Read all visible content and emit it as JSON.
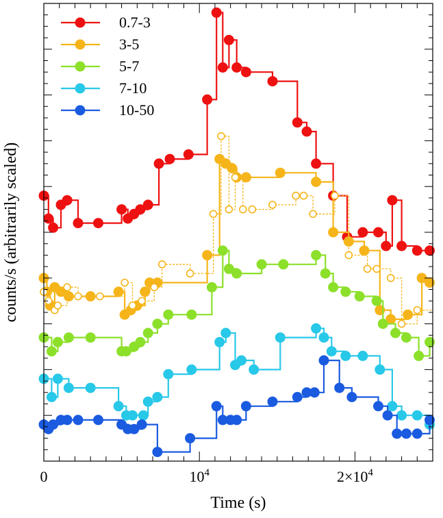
{
  "chart_data": {
    "type": "line",
    "xlabel": "Time (s)",
    "ylabel": "counts/s (arbitrarily scaled)",
    "xlim": [
      0,
      25000
    ],
    "ylim": [
      0,
      1
    ],
    "x_tick_labels": [
      {
        "value": 0,
        "label": "0"
      },
      {
        "value": 10000,
        "label": "10",
        "sup": "4"
      },
      {
        "value": 20000,
        "label": "2×10",
        "sup": "4"
      }
    ],
    "legend_position": "top-left",
    "series": [
      {
        "name": "0.7-3",
        "color": "#ee1111",
        "x": [
          0,
          300,
          600,
          1100,
          1500,
          2200,
          3500,
          5000,
          5400,
          5800,
          6200,
          6700,
          7400,
          8100,
          9300,
          10500,
          11100,
          11500,
          11900,
          12400,
          13000,
          14700,
          16300,
          16900,
          17500,
          18600,
          19500,
          20500,
          21500,
          22000,
          22400,
          23000,
          24000,
          24800
        ],
        "y": [
          0.58,
          0.53,
          0.51,
          0.56,
          0.57,
          0.52,
          0.52,
          0.55,
          0.53,
          0.54,
          0.55,
          0.56,
          0.65,
          0.66,
          0.67,
          0.79,
          0.98,
          0.86,
          0.92,
          0.86,
          0.85,
          0.83,
          0.74,
          0.72,
          0.65,
          0.58,
          0.49,
          0.5,
          0.5,
          0.47,
          0.57,
          0.47,
          0.46,
          0.46
        ]
      },
      {
        "name": "3-5",
        "color": "#f5b51a",
        "x": [
          0,
          200,
          400,
          700,
          1100,
          1600,
          3000,
          4800,
          5200,
          5600,
          6000,
          6500,
          6800,
          7300,
          10500,
          11300,
          11700,
          12100,
          12400,
          13000,
          15200,
          17500,
          18600,
          19600,
          20600,
          21600,
          22300,
          23400,
          24300,
          24800
        ],
        "y": [
          0.4,
          0.37,
          0.34,
          0.38,
          0.37,
          0.36,
          0.36,
          0.37,
          0.32,
          0.33,
          0.34,
          0.37,
          0.39,
          0.39,
          0.45,
          0.66,
          0.65,
          0.64,
          0.62,
          0.62,
          0.63,
          0.61,
          0.5,
          0.48,
          0.46,
          0.33,
          0.31,
          0.32,
          0.4,
          0.39
        ]
      },
      {
        "name": "3-5 (open)",
        "color": "#f5b51a",
        "open": true,
        "x": [
          0,
          300,
          700,
          900,
          1500,
          2200,
          3600,
          5200,
          5700,
          6300,
          7100,
          7600,
          9400,
          10900,
          11400,
          11900,
          12300,
          12800,
          13400,
          14700,
          16200,
          16700,
          17300,
          18700,
          19600,
          20800,
          21400,
          22300,
          23000,
          24000
        ],
        "y": [
          0.37,
          0.35,
          0.33,
          0.34,
          0.38,
          0.36,
          0.36,
          0.39,
          0.34,
          0.35,
          0.38,
          0.43,
          0.41,
          0.54,
          0.71,
          0.55,
          0.62,
          0.55,
          0.55,
          0.56,
          0.58,
          0.58,
          0.54,
          0.58,
          0.45,
          0.42,
          0.42,
          0.4,
          0.3,
          0.33
        ]
      },
      {
        "name": "5-7",
        "color": "#8ce02a",
        "x": [
          0,
          500,
          900,
          1600,
          3000,
          5000,
          5300,
          5800,
          6200,
          6700,
          7300,
          8000,
          9500,
          10800,
          11500,
          11900,
          12400,
          14000,
          15400,
          17500,
          18100,
          18600,
          19400,
          20300,
          21400,
          21800,
          22600,
          23300,
          24100,
          24800
        ],
        "y": [
          0.27,
          0.24,
          0.26,
          0.27,
          0.27,
          0.24,
          0.24,
          0.25,
          0.26,
          0.28,
          0.3,
          0.32,
          0.32,
          0.38,
          0.46,
          0.42,
          0.41,
          0.43,
          0.43,
          0.45,
          0.41,
          0.38,
          0.37,
          0.36,
          0.35,
          0.3,
          0.28,
          0.27,
          0.23,
          0.26
        ]
      },
      {
        "name": "7-10",
        "color": "#28c8e8",
        "x": [
          0,
          500,
          900,
          1600,
          3000,
          4800,
          5300,
          5700,
          6400,
          6700,
          7300,
          8000,
          9500,
          11300,
          11700,
          12300,
          12700,
          13500,
          15200,
          17500,
          18000,
          18500,
          19400,
          20500,
          21600,
          22400,
          23000,
          24000,
          24800
        ],
        "y": [
          0.18,
          0.14,
          0.18,
          0.16,
          0.16,
          0.12,
          0.1,
          0.1,
          0.1,
          0.13,
          0.14,
          0.19,
          0.2,
          0.26,
          0.28,
          0.21,
          0.22,
          0.2,
          0.27,
          0.29,
          0.27,
          0.24,
          0.23,
          0.23,
          0.2,
          0.12,
          0.1,
          0.1,
          0.08
        ]
      },
      {
        "name": "10-50",
        "color": "#1a5be0",
        "x": [
          0,
          300,
          600,
          1100,
          1500,
          2200,
          3500,
          5000,
          5400,
          5800,
          6300,
          7300,
          9400,
          11100,
          11500,
          12000,
          12400,
          13000,
          14700,
          16300,
          16900,
          17400,
          18000,
          19000,
          19800,
          21500,
          22100,
          22700,
          23300,
          24000,
          24800
        ],
        "y": [
          0.08,
          0.07,
          0.08,
          0.09,
          0.09,
          0.09,
          0.09,
          0.08,
          0.07,
          0.07,
          0.08,
          0.02,
          0.05,
          0.12,
          0.09,
          0.09,
          0.09,
          0.12,
          0.13,
          0.14,
          0.15,
          0.15,
          0.22,
          0.16,
          0.14,
          0.12,
          0.1,
          0.06,
          0.06,
          0.06,
          0.09
        ]
      }
    ]
  }
}
